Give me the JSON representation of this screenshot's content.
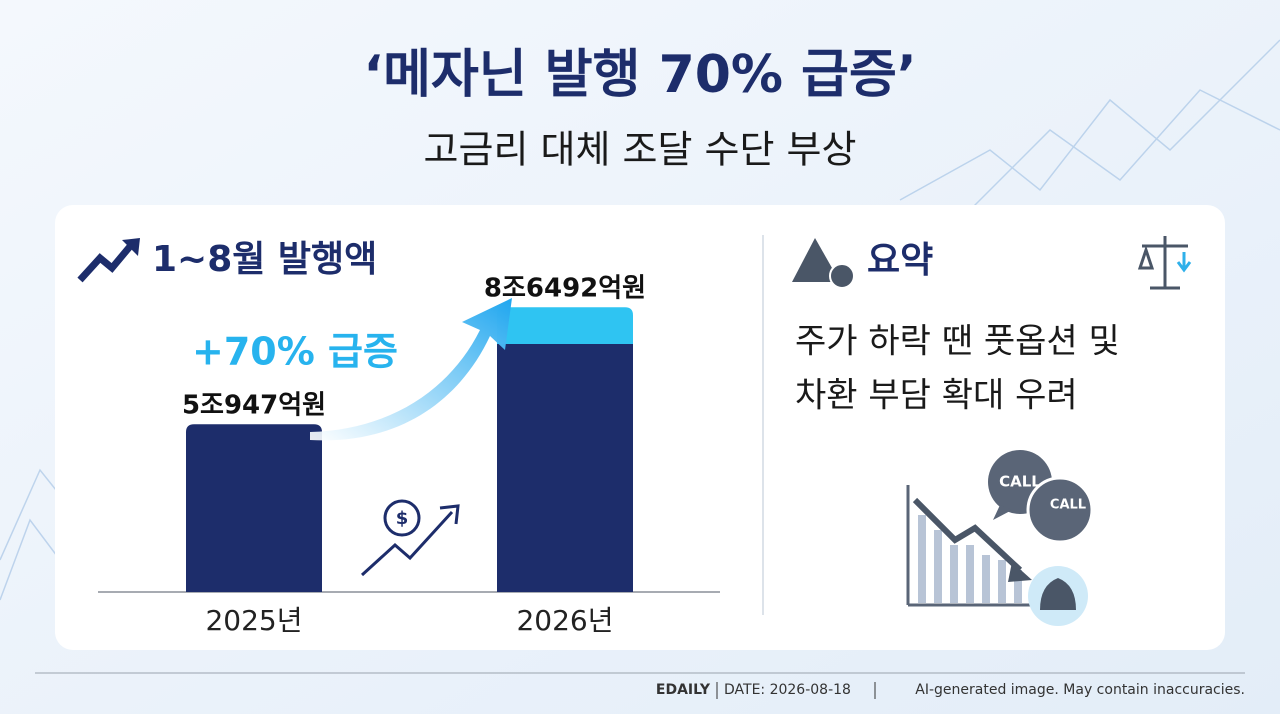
{
  "header": {
    "title": "‘메자닌 발행 70% 급증’",
    "subtitle": "고금리 대체 조달 수단 부상"
  },
  "chart_data": {
    "type": "bar",
    "title": "1~8월 발행액",
    "annotation": "+70% 급증",
    "categories": [
      "2025년",
      "2026년"
    ],
    "values": [
      50947,
      86492
    ],
    "value_labels": [
      "5조947억원",
      "8조6492억원"
    ],
    "color": "#1d2d6b",
    "highlight_color": "#2fc4f2"
  },
  "summary": {
    "title": "요약",
    "lines": [
      "주가 하락 땐 풋옵션 및",
      "차환 부담 확대 우려"
    ],
    "call_labels": [
      "CALL",
      "CALL"
    ]
  },
  "footer": {
    "source": "EDAILY",
    "date": "DATE: 2026-08-18",
    "disclaimer": "AI-generated image. May contain inaccuracies."
  }
}
